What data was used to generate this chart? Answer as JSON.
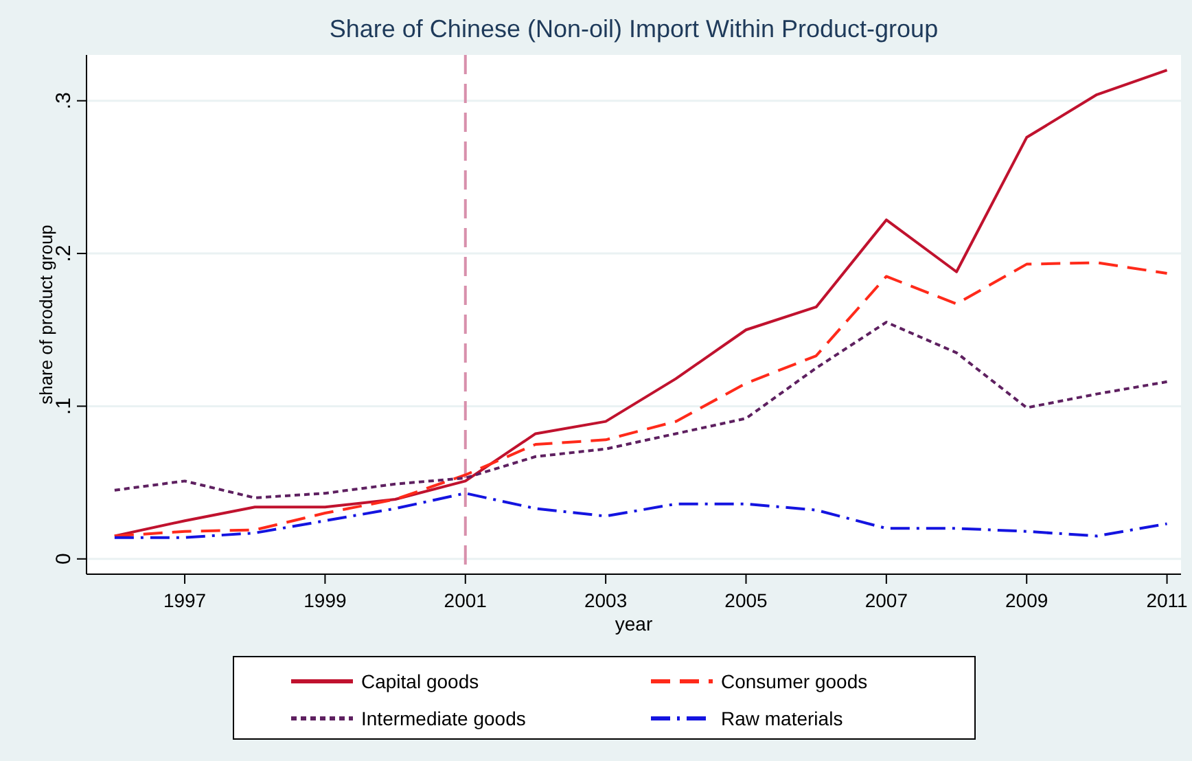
{
  "chart_data": {
    "type": "line",
    "title": "Share of Chinese (Non-oil) Import Within Product-group",
    "xlabel": "year",
    "ylabel": "share of product group",
    "x": [
      1996,
      1997,
      1998,
      1999,
      2000,
      2001,
      2002,
      2003,
      2004,
      2005,
      2006,
      2007,
      2008,
      2009,
      2010,
      2011
    ],
    "series": [
      {
        "name": "Capital goods",
        "color": "#c0122e",
        "line_style": "solid",
        "values": [
          0.015,
          0.025,
          0.034,
          0.034,
          0.039,
          0.051,
          0.082,
          0.09,
          0.118,
          0.15,
          0.165,
          0.222,
          0.188,
          0.276,
          0.304,
          0.32
        ]
      },
      {
        "name": "Consumer goods",
        "color": "#ff2a1a",
        "line_style": "dashed",
        "values": [
          0.015,
          0.018,
          0.019,
          0.03,
          0.039,
          0.055,
          0.075,
          0.078,
          0.09,
          0.115,
          0.133,
          0.185,
          0.167,
          0.193,
          0.194,
          0.187
        ]
      },
      {
        "name": "Intermediate goods",
        "color": "#5e2060",
        "line_style": "dotted",
        "values": [
          0.045,
          0.051,
          0.04,
          0.043,
          0.049,
          0.053,
          0.067,
          0.072,
          0.082,
          0.092,
          0.125,
          0.155,
          0.135,
          0.099,
          0.108,
          0.116
        ]
      },
      {
        "name": "Raw materials",
        "color": "#1414e0",
        "line_style": "dashdot",
        "values": [
          0.014,
          0.014,
          0.017,
          0.025,
          0.033,
          0.043,
          0.033,
          0.028,
          0.036,
          0.036,
          0.032,
          0.02,
          0.02,
          0.018,
          0.015,
          0.023
        ]
      }
    ],
    "xlim": [
      1995.6,
      2011.2
    ],
    "xticks": [
      1997,
      1999,
      2001,
      2003,
      2005,
      2007,
      2009,
      2011
    ],
    "ylim": [
      -0.01,
      0.33
    ],
    "yticks": [
      0,
      {
        "value": 0.1,
        "label": ".1"
      },
      {
        "value": 0.2,
        "label": ".2"
      },
      {
        "value": 0.3,
        "label": ".3"
      }
    ],
    "ref_lines": [
      {
        "axis": "x",
        "value": 2001,
        "color": "#d890ac",
        "line_style": "dashed"
      }
    ],
    "grid": "y",
    "legend": "bottom",
    "marker": "none"
  }
}
